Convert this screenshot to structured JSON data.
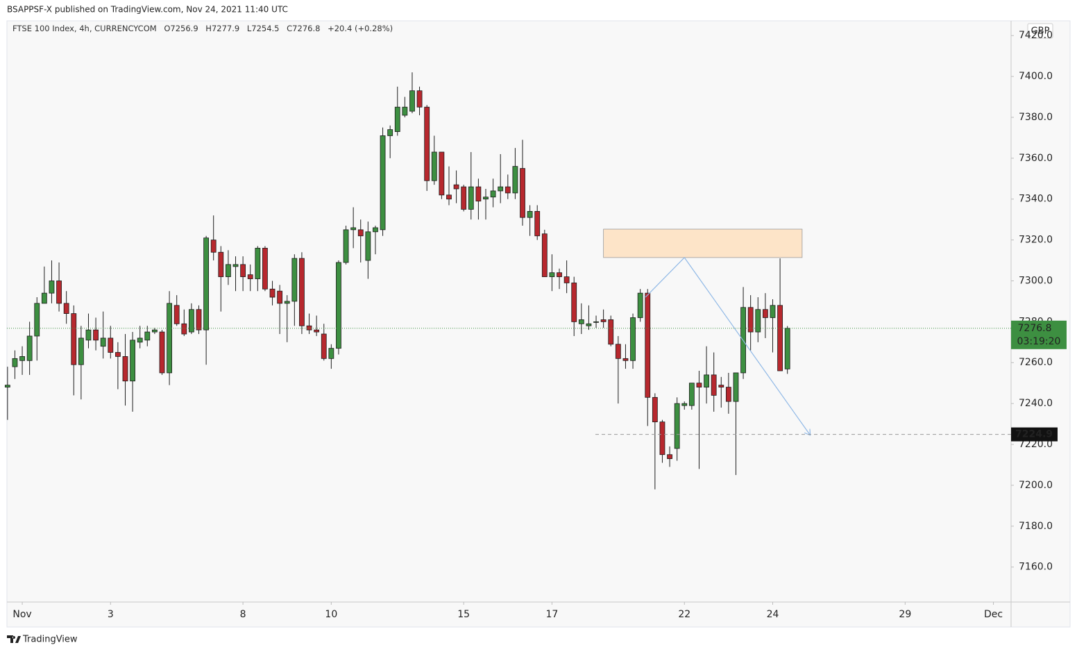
{
  "header": {
    "publisher": "BSAPPSF-X published on TradingView.com, Nov 24, 2021 11:40 UTC"
  },
  "chart_data": {
    "type": "candlestick",
    "symbol": "FTSE 100 Index, 4h, CURRENCYCOM",
    "ohlc_legend": [
      "O7256.9",
      "H7277.9",
      "L7254.5",
      "C7276.8",
      "+20.4 (+0.28%)"
    ],
    "currency": "GBP",
    "x": [
      -2,
      -1,
      0,
      1,
      2,
      3,
      4,
      5,
      6,
      7,
      8,
      9,
      10,
      11,
      12,
      13,
      14,
      15,
      16,
      17,
      18,
      19,
      20,
      21,
      22,
      23,
      24,
      25,
      26,
      27,
      28,
      29,
      30,
      31,
      32,
      33,
      34,
      35,
      36,
      37,
      38,
      39,
      40,
      41,
      42,
      43,
      44,
      45,
      46,
      47,
      48,
      49,
      50,
      51,
      52,
      53,
      54,
      55,
      56,
      57,
      58,
      59,
      60,
      61,
      62,
      63,
      64,
      65,
      66,
      67,
      68,
      69,
      70,
      71,
      72,
      73,
      74,
      75,
      76,
      77,
      78,
      79,
      80,
      81,
      82,
      83,
      84,
      85,
      86,
      87,
      88,
      89,
      90,
      91,
      92,
      93,
      94,
      95,
      96,
      97,
      98,
      99,
      100,
      101,
      102,
      103,
      104
    ],
    "open": [
      7248,
      7258,
      7261,
      7261,
      7273,
      7289,
      7294,
      7300,
      7289,
      7284,
      7259,
      7271,
      7276,
      7268,
      7272,
      7265,
      7263,
      7251,
      7270,
      7271,
      7275,
      7275,
      7255,
      7288,
      7279,
      7275,
      7286,
      7276,
      7320,
      7314,
      7302,
      7307,
      7308,
      7303,
      7301,
      7316,
      7296,
      7295,
      7289,
      7290,
      7311,
      7278,
      7276,
      7274,
      7262,
      7267,
      7309,
      7325,
      7325,
      7310,
      7324,
      7325,
      7371,
      7373,
      7381,
      7383,
      7393,
      7385,
      7349,
      7363,
      7342,
      7347,
      7346,
      7335,
      7346,
      7340,
      7341,
      7344,
      7346,
      7343,
      7355,
      7331,
      7334,
      7323,
      7302,
      7304,
      7302,
      7299,
      7279,
      7278,
      7280,
      7281,
      7281,
      7269,
      7262,
      7261,
      7282,
      7294,
      7243,
      7231,
      7215,
      7218,
      7239,
      7239,
      7250,
      7248,
      7254,
      7249,
      7248,
      7241,
      7255,
      7287,
      7275,
      7286,
      7282,
      7288,
      7256.9
    ],
    "high": [
      7258,
      7266,
      7268,
      7280,
      7292,
      7307,
      7310,
      7309,
      7295,
      7288,
      7278,
      7284,
      7282,
      7285,
      7278,
      7270,
      7274,
      7275,
      7278,
      7278,
      7277,
      7276,
      7295,
      7293,
      7286,
      7289,
      7288,
      7322,
      7332,
      7317,
      7315,
      7312,
      7312,
      7308,
      7317,
      7317,
      7300,
      7298,
      7293,
      7313,
      7314,
      7284,
      7283,
      7279,
      7269,
      7310,
      7327,
      7336,
      7330,
      7329,
      7327,
      7375,
      7376,
      7395,
      7390,
      7402,
      7395,
      7386,
      7371,
      7363,
      7356,
      7354,
      7347,
      7363,
      7350,
      7345,
      7350,
      7362,
      7352,
      7365,
      7369,
      7337,
      7337,
      7325,
      7313,
      7306,
      7310,
      7302,
      7289,
      7288,
      7283,
      7286,
      7283,
      7273,
      7269,
      7284,
      7296,
      7296,
      7245,
      7232,
      7219,
      7243,
      7241,
      7250,
      7256,
      7268,
      7265,
      7253,
      7255,
      7255,
      7297,
      7293,
      7292,
      7294,
      7291,
      7311,
      7277.9
    ],
    "low": [
      7232,
      7252,
      7254,
      7254,
      7261,
      7289,
      7289,
      7285,
      7279,
      7244,
      7242,
      7267,
      7266,
      7262,
      7262,
      7247,
      7239,
      7236,
      7267,
      7268,
      7274,
      7254,
      7249,
      7278,
      7273,
      7274,
      7274,
      7259,
      7310,
      7285,
      7298,
      7295,
      7295,
      7295,
      7295,
      7295,
      7288,
      7274,
      7270,
      7278,
      7274,
      7274,
      7273,
      7261,
      7257,
      7264,
      7308,
      7316,
      7309,
      7301,
      7313,
      7322,
      7360,
      7371,
      7380,
      7382,
      7381,
      7344,
      7347,
      7340,
      7337,
      7338,
      7334,
      7330,
      7330,
      7330,
      7336,
      7338,
      7340,
      7340,
      7327,
      7322,
      7320,
      7302,
      7295,
      7296,
      7294,
      7273,
      7274,
      7276,
      7277,
      7277,
      7268,
      7240,
      7257,
      7257,
      7280,
      7229,
      7198,
      7211,
      7209,
      7212,
      7237,
      7237,
      7208,
      7240,
      7236,
      7238,
      7235,
      7205,
      7252,
      7266,
      7270,
      7272,
      7265,
      7256,
      7254.5
    ],
    "close": [
      7249,
      7262,
      7263,
      7273,
      7289,
      7294,
      7300,
      7289,
      7284,
      7259,
      7272,
      7276,
      7271,
      7272,
      7265,
      7263,
      7251,
      7271,
      7272,
      7275,
      7276,
      7255,
      7289,
      7279,
      7274,
      7286,
      7276,
      7321,
      7314,
      7302,
      7308,
      7308,
      7302,
      7301,
      7316,
      7296,
      7292,
      7289,
      7290,
      7311,
      7278,
      7276,
      7275,
      7262,
      7267,
      7309,
      7325,
      7326,
      7322,
      7324,
      7326,
      7371,
      7374,
      7385,
      7385,
      7393,
      7385,
      7349,
      7363,
      7342,
      7340,
      7345,
      7335,
      7346,
      7339,
      7341,
      7344,
      7346,
      7343,
      7356,
      7331,
      7334,
      7322,
      7302,
      7304,
      7302,
      7299,
      7280,
      7281,
      7279,
      7280,
      7280,
      7269,
      7262,
      7261,
      7282,
      7294,
      7243,
      7231,
      7215,
      7213,
      7240,
      7240,
      7250,
      7248,
      7254,
      7244,
      7248,
      7241,
      7255,
      7287,
      7275,
      7286,
      7282,
      7288,
      7256,
      7276.8
    ],
    "up_color": "#3d8f41",
    "down_color": "#b7282e",
    "xlim": [
      -2.08,
      134.4
    ],
    "xticks": [
      {
        "value": 0,
        "label": "Nov"
      },
      {
        "value": 12,
        "label": "3"
      },
      {
        "value": 30,
        "label": "8"
      },
      {
        "value": 42,
        "label": "10"
      },
      {
        "value": 60,
        "label": "15"
      },
      {
        "value": 72,
        "label": "17"
      },
      {
        "value": 90,
        "label": "22"
      },
      {
        "value": 102,
        "label": "24"
      },
      {
        "value": 120,
        "label": "29"
      },
      {
        "value": 132,
        "label": "Dec"
      }
    ],
    "ylim": [
      7142.9,
      7427.2
    ],
    "yticks": [
      {
        "value": 7160,
        "label": "7160.0"
      },
      {
        "value": 7180,
        "label": "7180.0"
      },
      {
        "value": 7200,
        "label": "7200.0"
      },
      {
        "value": 7220,
        "label": "7220.0"
      },
      {
        "value": 7240,
        "label": "7240.0"
      },
      {
        "value": 7260,
        "label": "7260.0"
      },
      {
        "value": 7280,
        "label": "7280.0"
      },
      {
        "value": 7300,
        "label": "7300.0"
      },
      {
        "value": 7320,
        "label": "7320.0"
      },
      {
        "value": 7340,
        "label": "7340.0"
      },
      {
        "value": 7360,
        "label": "7360.0"
      },
      {
        "value": 7380,
        "label": "7380.0"
      },
      {
        "value": 7400,
        "label": "7400.0"
      },
      {
        "value": 7420,
        "label": "7420.0"
      }
    ],
    "grid": false,
    "last_price": {
      "value": 7276.8,
      "label": "7276.8",
      "countdown": "03:19:20",
      "color": "#3d8f41"
    },
    "level": {
      "value": 7224.9,
      "label": "7224.9"
    },
    "zone": {
      "x": [
        79,
        106
      ],
      "y": [
        7311.4,
        7325.3
      ],
      "color": "#fde4c8"
    },
    "projection": {
      "x": [
        84.7,
        90,
        107.1
      ],
      "y": [
        7292,
        7311.4,
        7224.5
      ],
      "color": "#8fb8e6"
    }
  },
  "footer": {
    "brand": "TradingView"
  }
}
